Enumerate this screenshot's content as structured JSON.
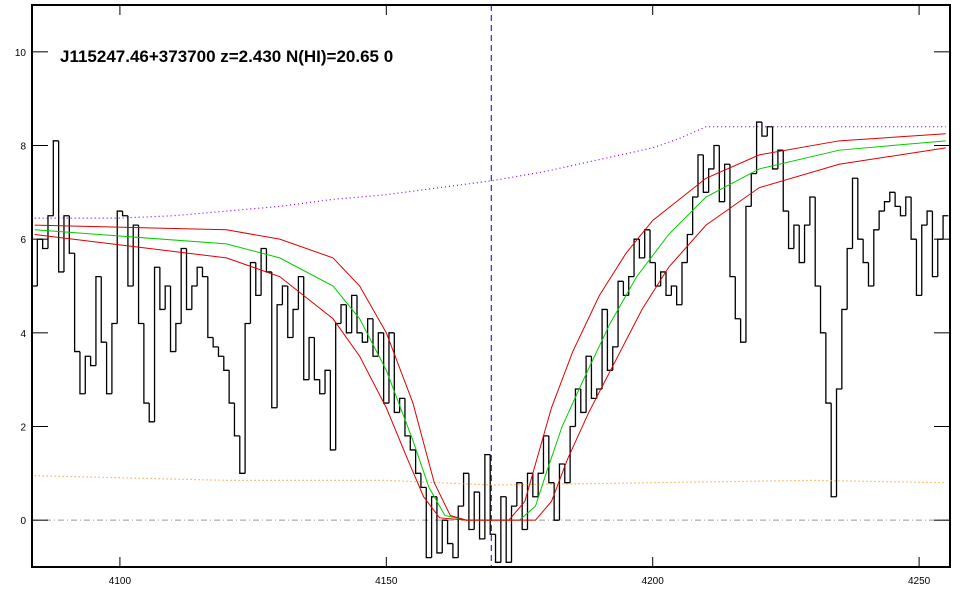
{
  "chart_data": {
    "type": "line",
    "title": "J115247.46+373700 z=2.430 N(HI)=20.65 0",
    "xlim": [
      4083.5,
      4255.8
    ],
    "ylim": [
      -1,
      11
    ],
    "xticks": [
      4100,
      4150,
      4200,
      4250
    ],
    "yticks": [
      0,
      2,
      4,
      6,
      8,
      10
    ],
    "vline": {
      "x": 4169.7,
      "color": "#0000cc"
    },
    "hline": {
      "y": 0,
      "color": "#999999"
    },
    "series": [
      {
        "style": "step",
        "color": "#000000",
        "x": [
          4084,
          4085,
          4086,
          4087,
          4088,
          4089,
          4090,
          4091,
          4092,
          4093,
          4094,
          4095,
          4096,
          4097,
          4098,
          4099,
          4100,
          4101,
          4102,
          4103,
          4104,
          4105,
          4106,
          4107,
          4108,
          4109,
          4110,
          4111,
          4112,
          4113,
          4114,
          4115,
          4116,
          4117,
          4118,
          4119,
          4120,
          4121,
          4122,
          4123,
          4124,
          4125,
          4126,
          4127,
          4128,
          4129,
          4130,
          4131,
          4132,
          4133,
          4134,
          4135,
          4136,
          4137,
          4138,
          4139,
          4140,
          4141,
          4142,
          4143,
          4144,
          4145,
          4146,
          4147,
          4148,
          4149,
          4150,
          4151,
          4152,
          4153,
          4154,
          4155,
          4156,
          4157,
          4158,
          4159,
          4160,
          4161,
          4162,
          4163,
          4164,
          4165,
          4166,
          4167,
          4168,
          4169,
          4170,
          4171,
          4172,
          4173,
          4174,
          4175,
          4176,
          4177,
          4178,
          4179,
          4180,
          4181,
          4182,
          4183,
          4184,
          4185,
          4186,
          4187,
          4188,
          4189,
          4190,
          4191,
          4192,
          4193,
          4194,
          4195,
          4196,
          4197,
          4198,
          4199,
          4200,
          4201,
          4202,
          4203,
          4204,
          4205,
          4206,
          4207,
          4208,
          4209,
          4210,
          4211,
          4212,
          4213,
          4214,
          4215,
          4216,
          4217,
          4218,
          4219,
          4220,
          4221,
          4222,
          4223,
          4224,
          4225,
          4226,
          4227,
          4228,
          4229,
          4230,
          4231,
          4232,
          4233,
          4234,
          4235,
          4236,
          4237,
          4238,
          4239,
          4240,
          4241,
          4242,
          4243,
          4244,
          4245,
          4246,
          4247,
          4248,
          4249,
          4250,
          4251,
          4252,
          4253,
          4254,
          4255
        ],
        "values": [
          5.0,
          6.0,
          5.8,
          6.5,
          8.1,
          5.3,
          6.5,
          5.7,
          3.6,
          2.7,
          3.5,
          3.3,
          5.2,
          3.8,
          2.7,
          4.2,
          6.6,
          6.5,
          5.0,
          6.3,
          4.2,
          2.5,
          2.1,
          5.4,
          4.5,
          5.0,
          3.6,
          4.2,
          5.8,
          4.5,
          5.0,
          5.4,
          5.2,
          3.9,
          3.7,
          3.5,
          3.2,
          2.5,
          1.8,
          1.0,
          4.2,
          5.5,
          4.8,
          5.8,
          5.3,
          2.4,
          4.6,
          5.0,
          3.9,
          4.5,
          5.2,
          3.0,
          3.9,
          3.0,
          2.7,
          3.2,
          1.5,
          4.2,
          4.6,
          4.0,
          4.8,
          4.0,
          3.8,
          4.3,
          3.5,
          4.0,
          2.5,
          4.0,
          2.3,
          2.6,
          1.8,
          1.5,
          1.0,
          0.7,
          -0.8,
          0.5,
          -0.7,
          0.0,
          -0.5,
          -0.8,
          0.3,
          1.0,
          -0.2,
          0.6,
          -0.4,
          1.4,
          -0.3,
          -0.9,
          0.5,
          -0.9,
          0.3,
          0.8,
          -0.2,
          1.0,
          0.5,
          1.0,
          1.8,
          0.8,
          0.0,
          1.2,
          0.8,
          2.0,
          2.8,
          2.3,
          3.5,
          2.6,
          2.8,
          4.5,
          3.2,
          3.7,
          5.1,
          4.8,
          5.2,
          6.0,
          5.6,
          6.2,
          5.5,
          5.0,
          5.3,
          4.8,
          5.0,
          4.6,
          5.5,
          6.1,
          6.9,
          7.8,
          7.0,
          7.5,
          8.0,
          6.8,
          7.6,
          5.2,
          4.3,
          3.8,
          6.7,
          7.4,
          8.5,
          8.2,
          8.4,
          7.5,
          7.9,
          6.6,
          5.8,
          6.3,
          5.5,
          6.3,
          6.9,
          5.0,
          4.0,
          2.5,
          0.5,
          2.8,
          4.5,
          5.8,
          7.3,
          6.0,
          5.5,
          5.0,
          6.2,
          6.6,
          6.8,
          7.0,
          6.7,
          6.5,
          6.9,
          6.0,
          4.8,
          6.3,
          6.6,
          5.2,
          6.0,
          6.5
        ]
      },
      {
        "style": "dotted",
        "color": "#8800ff",
        "x": [
          4084,
          4100,
          4110,
          4120,
          4130,
          4140,
          4150,
          4160,
          4170,
          4180,
          4190,
          4200,
          4205,
          4210,
          4220,
          4230,
          4240,
          4250,
          4255
        ],
        "values": [
          6.45,
          6.45,
          6.5,
          6.6,
          6.7,
          6.85,
          6.95,
          7.1,
          7.25,
          7.45,
          7.7,
          7.95,
          8.15,
          8.4,
          8.4,
          8.4,
          8.4,
          8.4,
          8.4
        ]
      },
      {
        "style": "dotted",
        "color": "#ff8800",
        "x": [
          4084,
          4120,
          4150,
          4170,
          4200,
          4230,
          4255
        ],
        "values": [
          0.95,
          0.85,
          0.85,
          0.75,
          0.8,
          0.85,
          0.8
        ]
      },
      {
        "style": "solid",
        "color": "#00cc00",
        "x": [
          4084,
          4120,
          4130,
          4140,
          4145,
          4150,
          4155,
          4158,
          4161,
          4165,
          4175,
          4178,
          4180,
          4183,
          4187,
          4192,
          4197,
          4203,
          4210,
          4220,
          4235,
          4255
        ],
        "values": [
          6.2,
          5.9,
          5.6,
          5.0,
          4.3,
          3.2,
          1.7,
          0.7,
          0.1,
          0,
          0,
          0.3,
          1.0,
          2.0,
          3.0,
          4.2,
          5.2,
          6.1,
          6.9,
          7.5,
          7.9,
          8.1
        ]
      },
      {
        "style": "solid",
        "color": "#dd0000",
        "x": [
          4084,
          4120,
          4130,
          4140,
          4145,
          4150,
          4155,
          4159,
          4162,
          4165,
          4173,
          4176,
          4178,
          4181,
          4185,
          4190,
          4195,
          4200,
          4210,
          4220,
          4235,
          4255
        ],
        "values": [
          6.3,
          6.2,
          6.0,
          5.6,
          5.0,
          4.0,
          2.5,
          0.8,
          0.1,
          0,
          0,
          0.4,
          1.2,
          2.4,
          3.6,
          4.8,
          5.7,
          6.4,
          7.3,
          7.8,
          8.1,
          8.25
        ]
      },
      {
        "style": "solid",
        "color": "#dd0000",
        "x": [
          4084,
          4120,
          4130,
          4140,
          4145,
          4150,
          4154,
          4157,
          4160,
          4165,
          4178,
          4181,
          4184,
          4188,
          4193,
          4198,
          4203,
          4210,
          4220,
          4235,
          4255
        ],
        "values": [
          6.1,
          5.6,
          5.2,
          4.3,
          3.5,
          2.4,
          1.3,
          0.5,
          0.05,
          0,
          0,
          0.4,
          1.3,
          2.3,
          3.4,
          4.5,
          5.4,
          6.3,
          7.1,
          7.6,
          7.95
        ]
      }
    ]
  }
}
